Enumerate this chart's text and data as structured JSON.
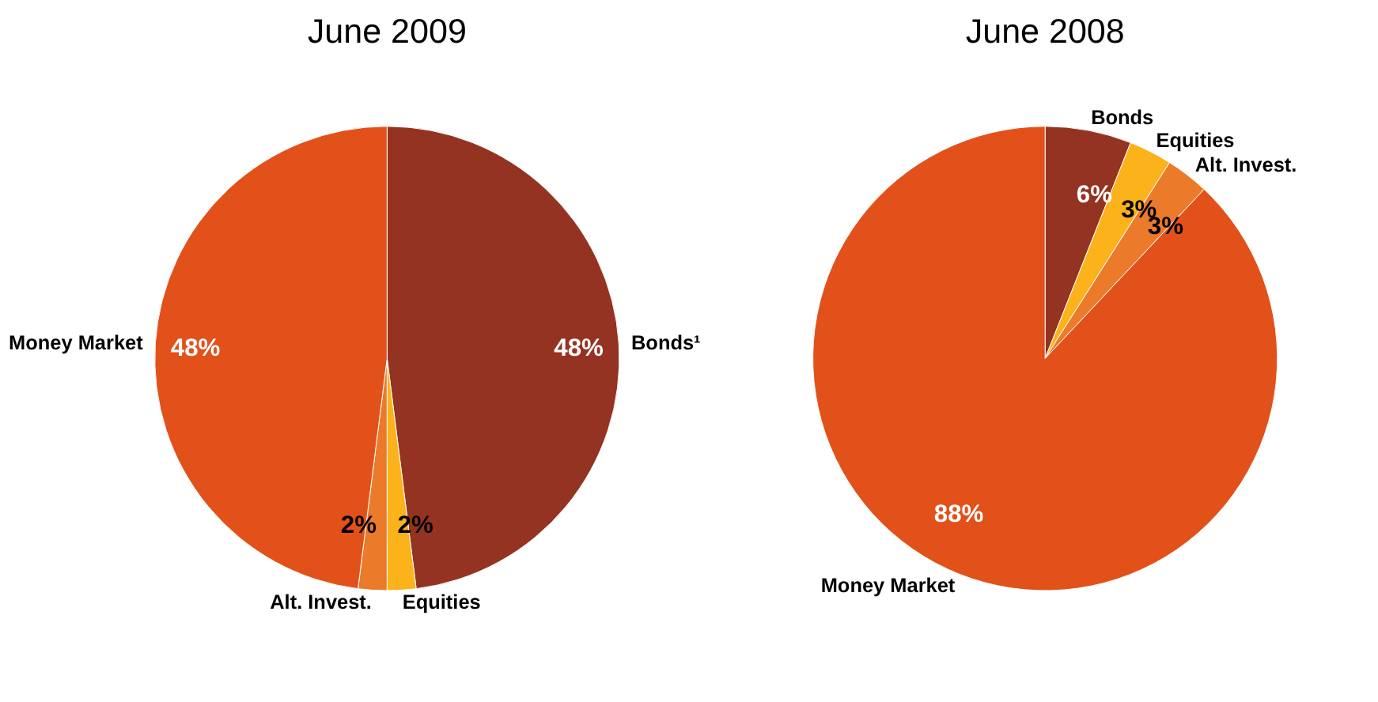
{
  "chart_data": [
    {
      "type": "pie",
      "title": "June 2009",
      "categories": [
        "Bonds¹",
        "Equities",
        "Alt. Invest.",
        "Money Market"
      ],
      "values": [
        48,
        2,
        2,
        48
      ],
      "colors": [
        "#943321",
        "#fbb21b",
        "#eb7a2a",
        "#e2511a"
      ],
      "value_labels": [
        "48%",
        "2%",
        "2%",
        "48%"
      ]
    },
    {
      "type": "pie",
      "title": "June 2008",
      "categories": [
        "Bonds",
        "Equities",
        "Alt. Invest.",
        "Money Market"
      ],
      "values": [
        6,
        3,
        3,
        88
      ],
      "colors": [
        "#943321",
        "#fbb21b",
        "#eb7a2a",
        "#e2511a"
      ],
      "value_labels": [
        "6%",
        "3%",
        "3%",
        "88%"
      ]
    }
  ]
}
